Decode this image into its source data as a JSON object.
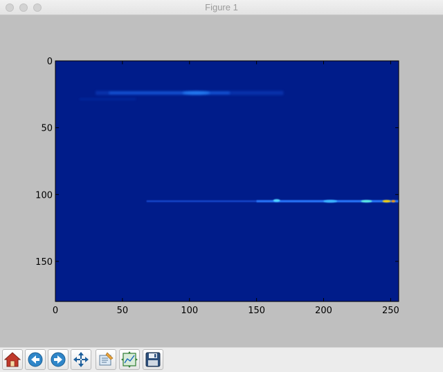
{
  "window": {
    "title": "Figure 1"
  },
  "toolbar": {
    "buttons": [
      {
        "name": "home",
        "icon": "home-icon"
      },
      {
        "name": "back",
        "icon": "back-arrow-icon"
      },
      {
        "name": "forward",
        "icon": "forward-arrow-icon"
      },
      {
        "name": "pan",
        "icon": "pan-move-icon"
      },
      {
        "name": "zoom",
        "icon": "zoom-rect-icon"
      },
      {
        "name": "configure-subplots",
        "icon": "subplots-config-icon"
      },
      {
        "name": "save",
        "icon": "save-disk-icon"
      }
    ]
  },
  "colors": {
    "figure_bg": "#bfbfbf",
    "image_bg": "#001c8a",
    "hot_cyan": "#2a8cff",
    "hot_yellow": "#ffd400"
  },
  "chart_data": {
    "type": "heatmap",
    "title": "",
    "xlabel": "",
    "ylabel": "",
    "xlim": [
      0,
      256
    ],
    "ylim": [
      180,
      0
    ],
    "x_ticks": [
      0,
      50,
      100,
      150,
      200,
      250
    ],
    "y_ticks": [
      0,
      50,
      100,
      150
    ],
    "colormap": "jet",
    "features": [
      {
        "label": "upper band",
        "y": 24,
        "x_start": 30,
        "x_end": 170,
        "peak_x": 105,
        "intensity": 0.25
      },
      {
        "label": "lower band",
        "y": 105,
        "x_start": 68,
        "x_end": 256,
        "peak_x": 245,
        "intensity": 0.75
      }
    ]
  }
}
